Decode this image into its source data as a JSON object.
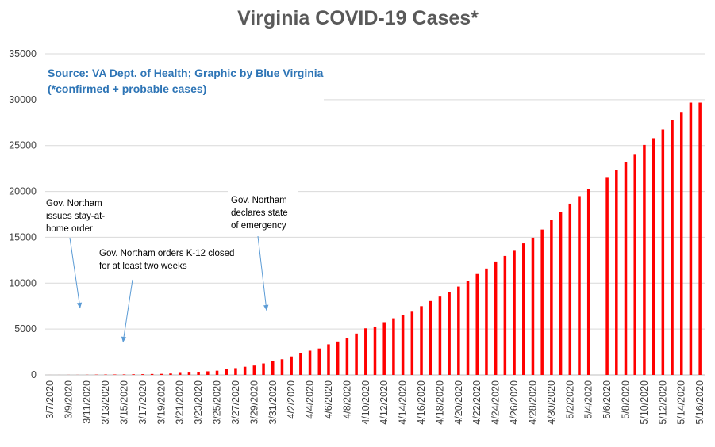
{
  "chart_data": {
    "type": "bar",
    "title": "Virginia COVID-19 Cases*",
    "subtitle_lines": [
      "Source: VA Dept. of Health; Graphic by Blue Virginia",
      "(*confirmed + probable cases)"
    ],
    "xlabel": "",
    "ylabel": "",
    "ylim": [
      0,
      35000
    ],
    "yticks": [
      0,
      5000,
      10000,
      15000,
      20000,
      25000,
      30000,
      35000
    ],
    "grid": true,
    "legend": "none",
    "bar_color": "#ff0000",
    "x_tick_labels": [
      "3/7/2020",
      "3/9/2020",
      "3/11/2020",
      "3/13/2020",
      "3/15/2020",
      "3/17/2020",
      "3/19/2020",
      "3/21/2020",
      "3/23/2020",
      "3/25/2020",
      "3/27/2020",
      "3/29/2020",
      "3/31/2020",
      "4/2/2020",
      "4/4/2020",
      "4/6/2020",
      "4/8/2020",
      "4/10/2020",
      "4/12/2020",
      "4/14/2020",
      "4/16/2020",
      "4/18/2020",
      "4/20/2020",
      "4/22/2020",
      "4/24/2020",
      "4/26/2020",
      "4/28/2020",
      "4/30/2020",
      "5/2/2020",
      "5/4/2020",
      "5/6/2020",
      "5/8/2020",
      "5/10/2020",
      "5/12/2020",
      "5/14/2020",
      "5/16/2020"
    ],
    "categories": [
      "3/7/2020",
      "3/8/2020",
      "3/9/2020",
      "3/10/2020",
      "3/11/2020",
      "3/12/2020",
      "3/13/2020",
      "3/14/2020",
      "3/15/2020",
      "3/16/2020",
      "3/17/2020",
      "3/18/2020",
      "3/19/2020",
      "3/20/2020",
      "3/21/2020",
      "3/22/2020",
      "3/23/2020",
      "3/24/2020",
      "3/25/2020",
      "3/26/2020",
      "3/27/2020",
      "3/28/2020",
      "3/29/2020",
      "3/30/2020",
      "3/31/2020",
      "4/1/2020",
      "4/2/2020",
      "4/3/2020",
      "4/4/2020",
      "4/5/2020",
      "4/6/2020",
      "4/7/2020",
      "4/8/2020",
      "4/9/2020",
      "4/10/2020",
      "4/11/2020",
      "4/12/2020",
      "4/13/2020",
      "4/14/2020",
      "4/15/2020",
      "4/16/2020",
      "4/17/2020",
      "4/18/2020",
      "4/19/2020",
      "4/20/2020",
      "4/21/2020",
      "4/22/2020",
      "4/23/2020",
      "4/24/2020",
      "4/25/2020",
      "4/26/2020",
      "4/27/2020",
      "4/28/2020",
      "4/29/2020",
      "4/30/2020",
      "5/1/2020",
      "5/2/2020",
      "5/3/2020",
      "5/4/2020",
      "5/5/2020",
      "5/6/2020",
      "5/7/2020",
      "5/8/2020",
      "5/9/2020",
      "5/10/2020",
      "5/11/2020",
      "5/12/2020",
      "5/13/2020",
      "5/14/2020",
      "5/15/2020",
      "5/16/2020"
    ],
    "values": [
      2,
      3,
      8,
      9,
      17,
      30,
      41,
      45,
      51,
      67,
      77,
      99,
      114,
      152,
      219,
      254,
      290,
      391,
      460,
      604,
      739,
      890,
      1020,
      1250,
      1484,
      1706,
      2012,
      2407,
      2637,
      2878,
      3333,
      3645,
      4042,
      4509,
      5077,
      5274,
      5747,
      6171,
      6500,
      6889,
      7491,
      8053,
      8542,
      8990,
      9630,
      10266,
      10998,
      11594,
      12366,
      12970,
      13535,
      14339,
      14961,
      15846,
      16901,
      17731,
      18671,
      19492,
      20256,
      null,
      21570,
      22342,
      23196,
      24081,
      25070,
      25800,
      26746,
      27813,
      28672,
      29683,
      29683
    ],
    "annotations": [
      {
        "lines": [
          "Gov. Northam",
          "issues stay-at-",
          "home order"
        ]
      },
      {
        "lines": [
          "Gov. Northam orders K-12 closed",
          "for at least two weeks"
        ]
      },
      {
        "lines": [
          "Gov. Northam",
          "declares state",
          "of emergency"
        ]
      }
    ]
  }
}
